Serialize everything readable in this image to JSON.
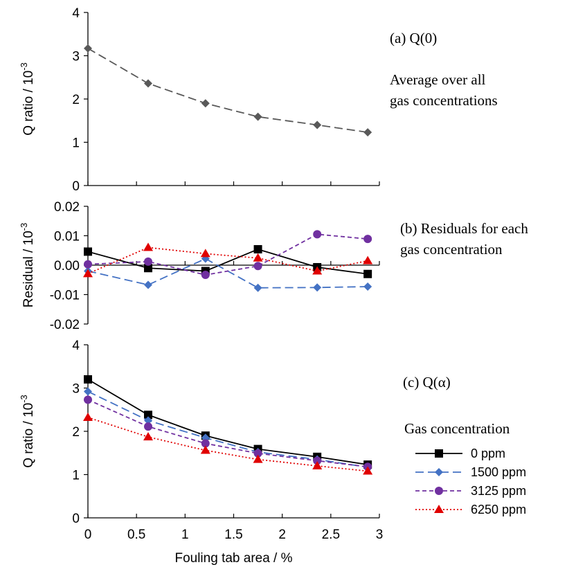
{
  "chart_data": [
    {
      "id": "panel-a",
      "type": "line",
      "annotations": [
        "(a) Q(0)",
        "Average over all",
        "gas concentrations"
      ],
      "ylabel": "Q ratio",
      "yunit": "/ 10",
      "yunit_exp": "-3",
      "ylim": [
        0,
        4
      ],
      "yticks": [
        "0",
        "1",
        "2",
        "3",
        "4"
      ],
      "xlim": [
        0,
        3
      ],
      "x": [
        0,
        0.62,
        1.21,
        1.75,
        2.36,
        2.88
      ],
      "series": [
        {
          "values": [
            3.17,
            2.36,
            1.9,
            1.59,
            1.4,
            1.23
          ],
          "color": "#595959",
          "marker": "diamond",
          "dash": "dashed"
        }
      ]
    },
    {
      "id": "panel-b",
      "type": "line",
      "annotations": [
        "(b) Residuals for each",
        "gas concentration"
      ],
      "ylabel": "Residual",
      "yunit": "/ 10",
      "yunit_exp": "-3",
      "ylim": [
        -0.02,
        0.02
      ],
      "yticks": [
        "-0.02",
        "-0.01",
        "0.00",
        "0.01",
        "0.02"
      ],
      "xlim": [
        0,
        3
      ],
      "x": [
        0,
        0.62,
        1.21,
        1.75,
        2.36,
        2.88
      ],
      "series": [
        {
          "name": "0 ppm",
          "values": [
            0.0046,
            -0.001,
            -0.002,
            0.0054,
            -0.0007,
            -0.003
          ],
          "color": "#000000",
          "marker": "square",
          "dash": "solid"
        },
        {
          "name": "1500 ppm",
          "values": [
            -0.002,
            -0.0067,
            0.0022,
            -0.0077,
            -0.0076,
            -0.0073
          ],
          "color": "#4472c4",
          "marker": "diamond",
          "dash": "dashed"
        },
        {
          "name": "3125 ppm",
          "values": [
            0.0003,
            0.0012,
            -0.0033,
            -0.0003,
            0.0105,
            0.0089
          ],
          "color": "#7030a0",
          "marker": "circle",
          "dash": "shortdash"
        },
        {
          "name": "6250 ppm",
          "values": [
            -0.0029,
            0.006,
            0.0039,
            0.0024,
            -0.002,
            0.0015
          ],
          "color": "#e00000",
          "marker": "triangle",
          "dash": "dotted"
        }
      ]
    },
    {
      "id": "panel-c",
      "type": "line",
      "annotations": [
        "(c) Q(α)"
      ],
      "ylabel": "Q ratio",
      "yunit": "/ 10",
      "yunit_exp": "-3",
      "xlabel": "Fouling tab area / %",
      "ylim": [
        0,
        4
      ],
      "yticks": [
        "0",
        "1",
        "2",
        "3",
        "4"
      ],
      "xlim": [
        0,
        3
      ],
      "xticks": [
        "0",
        "0.5",
        "1",
        "1.5",
        "2",
        "2.5",
        "3"
      ],
      "x": [
        0,
        0.62,
        1.21,
        1.75,
        2.36,
        2.88
      ],
      "legend_title": "Gas concentration",
      "legend_position": "right",
      "series": [
        {
          "name": "0 ppm",
          "values": [
            3.2,
            2.38,
            1.9,
            1.59,
            1.41,
            1.23
          ],
          "color": "#000000",
          "marker": "square",
          "dash": "solid"
        },
        {
          "name": "1500 ppm",
          "values": [
            2.92,
            2.25,
            1.85,
            1.52,
            1.35,
            1.17
          ],
          "color": "#4472c4",
          "marker": "diamond",
          "dash": "dashed"
        },
        {
          "name": "3125 ppm",
          "values": [
            2.73,
            2.11,
            1.72,
            1.49,
            1.32,
            1.18
          ],
          "color": "#7030a0",
          "marker": "circle",
          "dash": "shortdash"
        },
        {
          "name": "6250 ppm",
          "values": [
            2.32,
            1.87,
            1.56,
            1.35,
            1.2,
            1.08
          ],
          "color": "#e00000",
          "marker": "triangle",
          "dash": "dotted"
        }
      ]
    }
  ]
}
